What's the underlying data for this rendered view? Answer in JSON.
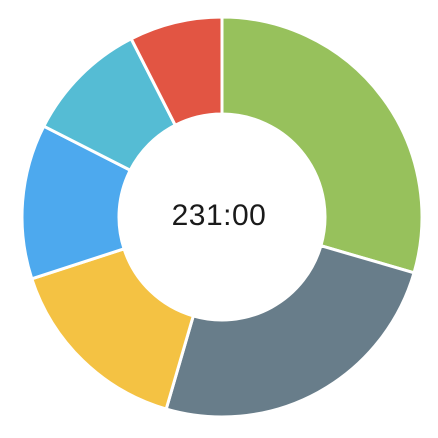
{
  "chart_data": {
    "type": "pie",
    "variant": "donut",
    "title": "",
    "center_label": "231:00",
    "start_angle_deg": 0,
    "direction": "clockwise",
    "slices": [
      {
        "name": "segment-green",
        "value": 29.5,
        "color": "#97C15C"
      },
      {
        "name": "segment-slate",
        "value": 25.0,
        "color": "#687D8A"
      },
      {
        "name": "segment-yellow",
        "value": 15.5,
        "color": "#F4C243"
      },
      {
        "name": "segment-blue",
        "value": 12.5,
        "color": "#4DA9EE"
      },
      {
        "name": "segment-teal",
        "value": 10.0,
        "color": "#55BCD4"
      },
      {
        "name": "segment-red",
        "value": 7.5,
        "color": "#E25543"
      }
    ]
  }
}
